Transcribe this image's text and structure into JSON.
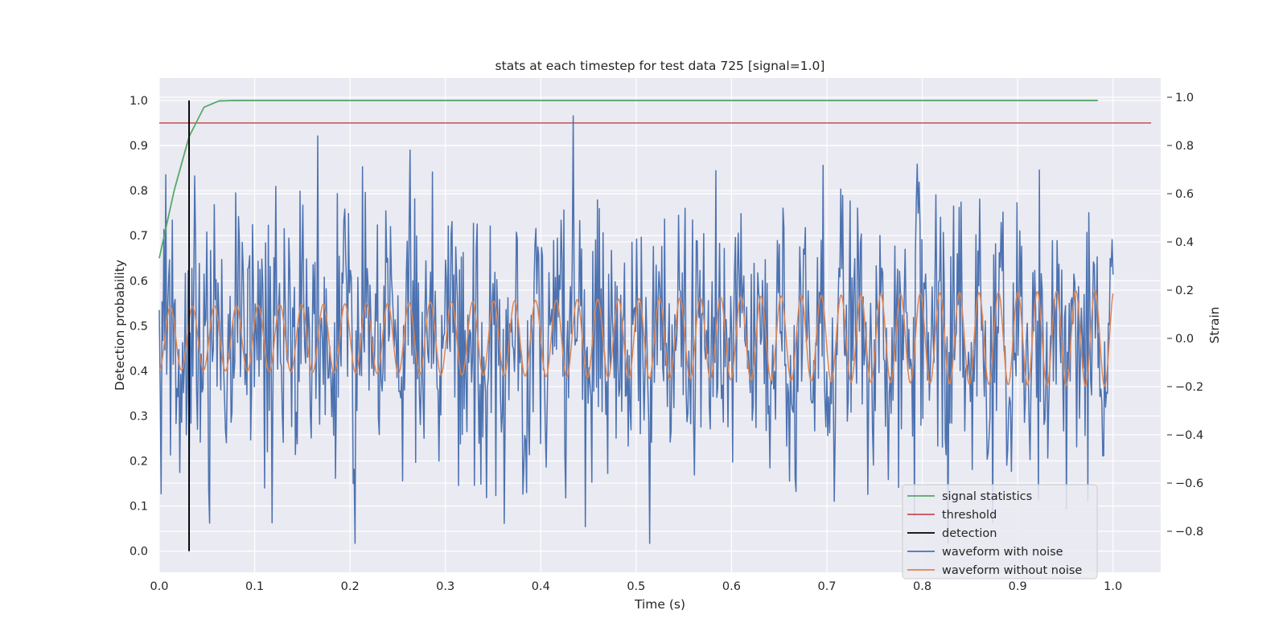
{
  "chart_data": {
    "type": "line",
    "title": "stats at each timestep for test data 725 [signal=1.0]",
    "xlabel": "Time (s)",
    "ylabel_left": "Detection probability",
    "ylabel_right": "Strain",
    "xlim": [
      0.0,
      1.05
    ],
    "ylim_left": [
      -0.047,
      1.05
    ],
    "ylim_right": [
      -0.97,
      1.08
    ],
    "x_ticks": [
      "0.0",
      "0.1",
      "0.2",
      "0.3",
      "0.4",
      "0.5",
      "0.6",
      "0.7",
      "0.8",
      "0.9",
      "1.0"
    ],
    "y_left_ticks": [
      "0.0",
      "0.1",
      "0.2",
      "0.3",
      "0.4",
      "0.5",
      "0.6",
      "0.7",
      "0.8",
      "0.9",
      "1.0"
    ],
    "y_right_ticks": [
      "−0.8",
      "−0.6",
      "−0.4",
      "−0.2",
      "0.0",
      "0.2",
      "0.4",
      "0.6",
      "0.8",
      "1.0"
    ],
    "grid": true,
    "legend_position": "lower right",
    "series": [
      {
        "name": "signal statistics",
        "axis": "left",
        "color": "#55a868",
        "x": [
          0.0,
          0.0156,
          0.0313,
          0.0469,
          0.0625,
          0.078,
          0.1,
          0.2,
          0.3,
          0.4,
          0.5,
          0.6,
          0.7,
          0.8,
          0.9,
          0.984
        ],
        "y": [
          0.65,
          0.8,
          0.92,
          0.985,
          0.999,
          1.0,
          1.0,
          1.0,
          1.0,
          1.0,
          1.0,
          1.0,
          1.0,
          1.0,
          1.0,
          1.0
        ]
      },
      {
        "name": "threshold",
        "axis": "left",
        "color": "#c44e52",
        "x": [
          0.0,
          1.04
        ],
        "y": [
          0.95,
          0.95
        ]
      },
      {
        "name": "detection",
        "axis": "left",
        "color": "#000000",
        "x": [
          0.0313,
          0.0313
        ],
        "y": [
          0.0,
          1.0
        ]
      },
      {
        "name": "waveform with noise",
        "axis": "right",
        "color": "#4c72b0",
        "x_range": [
          0.0,
          1.0
        ],
        "samples": 1024,
        "range": [
          -0.85,
          1.0
        ]
      },
      {
        "name": "waveform without noise",
        "axis": "right",
        "color": "#dd8452",
        "x_range": [
          0.0,
          1.0
        ],
        "amplitude_range": [
          0.13,
          0.2
        ],
        "cycles": 43
      }
    ]
  }
}
